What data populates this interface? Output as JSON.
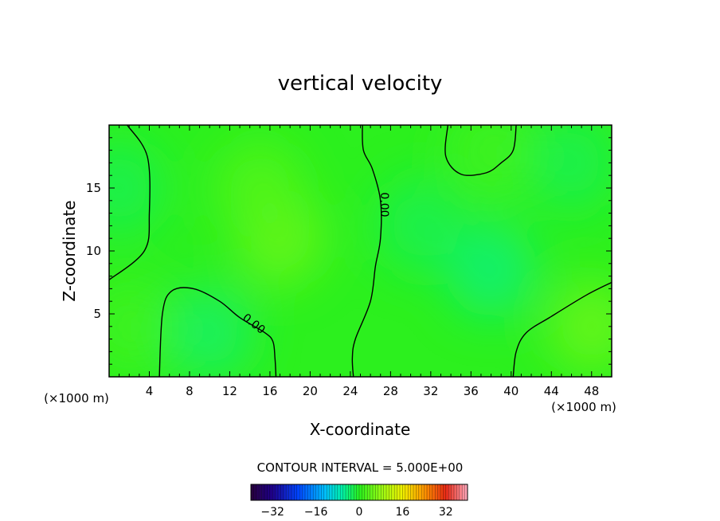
{
  "chart_data": {
    "type": "contour",
    "title": "vertical velocity",
    "xlabel": "X-coordinate",
    "ylabel": "Z-coordinate",
    "x_unit_label": "(×1000 m)",
    "y_unit_label": "(×1000 m)",
    "xlim": [
      0,
      50
    ],
    "ylim": [
      0,
      20
    ],
    "x_ticks": [
      4,
      8,
      12,
      16,
      20,
      24,
      28,
      32,
      36,
      40,
      44,
      48
    ],
    "y_ticks": [
      5,
      10,
      15
    ],
    "contour_interval_label": "CONTOUR INTERVAL = 5.000E+00",
    "contour_label": "0.00",
    "colorbar": {
      "range": [
        -40,
        40
      ],
      "ticks": [
        -32,
        -16,
        0,
        16,
        32
      ]
    },
    "field_blobs": [
      {
        "x": 17,
        "z": 11,
        "value": 3
      },
      {
        "x": 15,
        "z": 15,
        "value": 2
      },
      {
        "x": 10,
        "z": 3.5,
        "value": -2
      },
      {
        "x": 38,
        "z": 8.5,
        "value": -2.5
      },
      {
        "x": 31,
        "z": 12,
        "value": -1.5
      },
      {
        "x": 48,
        "z": 4,
        "value": 3
      },
      {
        "x": 1,
        "z": 15,
        "value": -1.5
      },
      {
        "x": 2,
        "z": 4,
        "value": 1
      },
      {
        "x": 46,
        "z": 17,
        "value": -1.5
      },
      {
        "x": 38,
        "z": 18,
        "value": 1
      }
    ],
    "zero_contours": [
      [
        [
          1.8,
          20
        ],
        [
          3.8,
          17.5
        ],
        [
          4.0,
          13
        ],
        [
          3.5,
          10
        ],
        [
          0,
          7.7
        ]
      ],
      [
        [
          5,
          0
        ],
        [
          5.3,
          5
        ],
        [
          6.2,
          6.8
        ],
        [
          8.4,
          7.0
        ],
        [
          11.0,
          6.0
        ],
        [
          13.0,
          4.7
        ],
        [
          15.5,
          3.5
        ],
        [
          16.3,
          2.8
        ],
        [
          16.5,
          1.5
        ],
        [
          16.6,
          0
        ]
      ],
      [
        [
          25.2,
          20
        ],
        [
          25.3,
          18
        ],
        [
          26.2,
          16.5
        ],
        [
          27.0,
          14.0
        ],
        [
          27.0,
          11.0
        ],
        [
          26.5,
          8.8
        ],
        [
          26.0,
          6.0
        ],
        [
          24.5,
          3.0
        ],
        [
          24.2,
          1.5
        ],
        [
          24.3,
          0
        ]
      ],
      [
        [
          33.7,
          20
        ],
        [
          33.5,
          17.5
        ],
        [
          35.0,
          16.1
        ],
        [
          37.5,
          16.2
        ],
        [
          39.0,
          17.0
        ],
        [
          40.2,
          18.0
        ],
        [
          40.5,
          20
        ]
      ],
      [
        [
          40.2,
          0
        ],
        [
          40.5,
          2.0
        ],
        [
          41.5,
          3.5
        ],
        [
          44.0,
          4.8
        ],
        [
          47.5,
          6.5
        ],
        [
          50,
          7.5
        ]
      ]
    ]
  }
}
